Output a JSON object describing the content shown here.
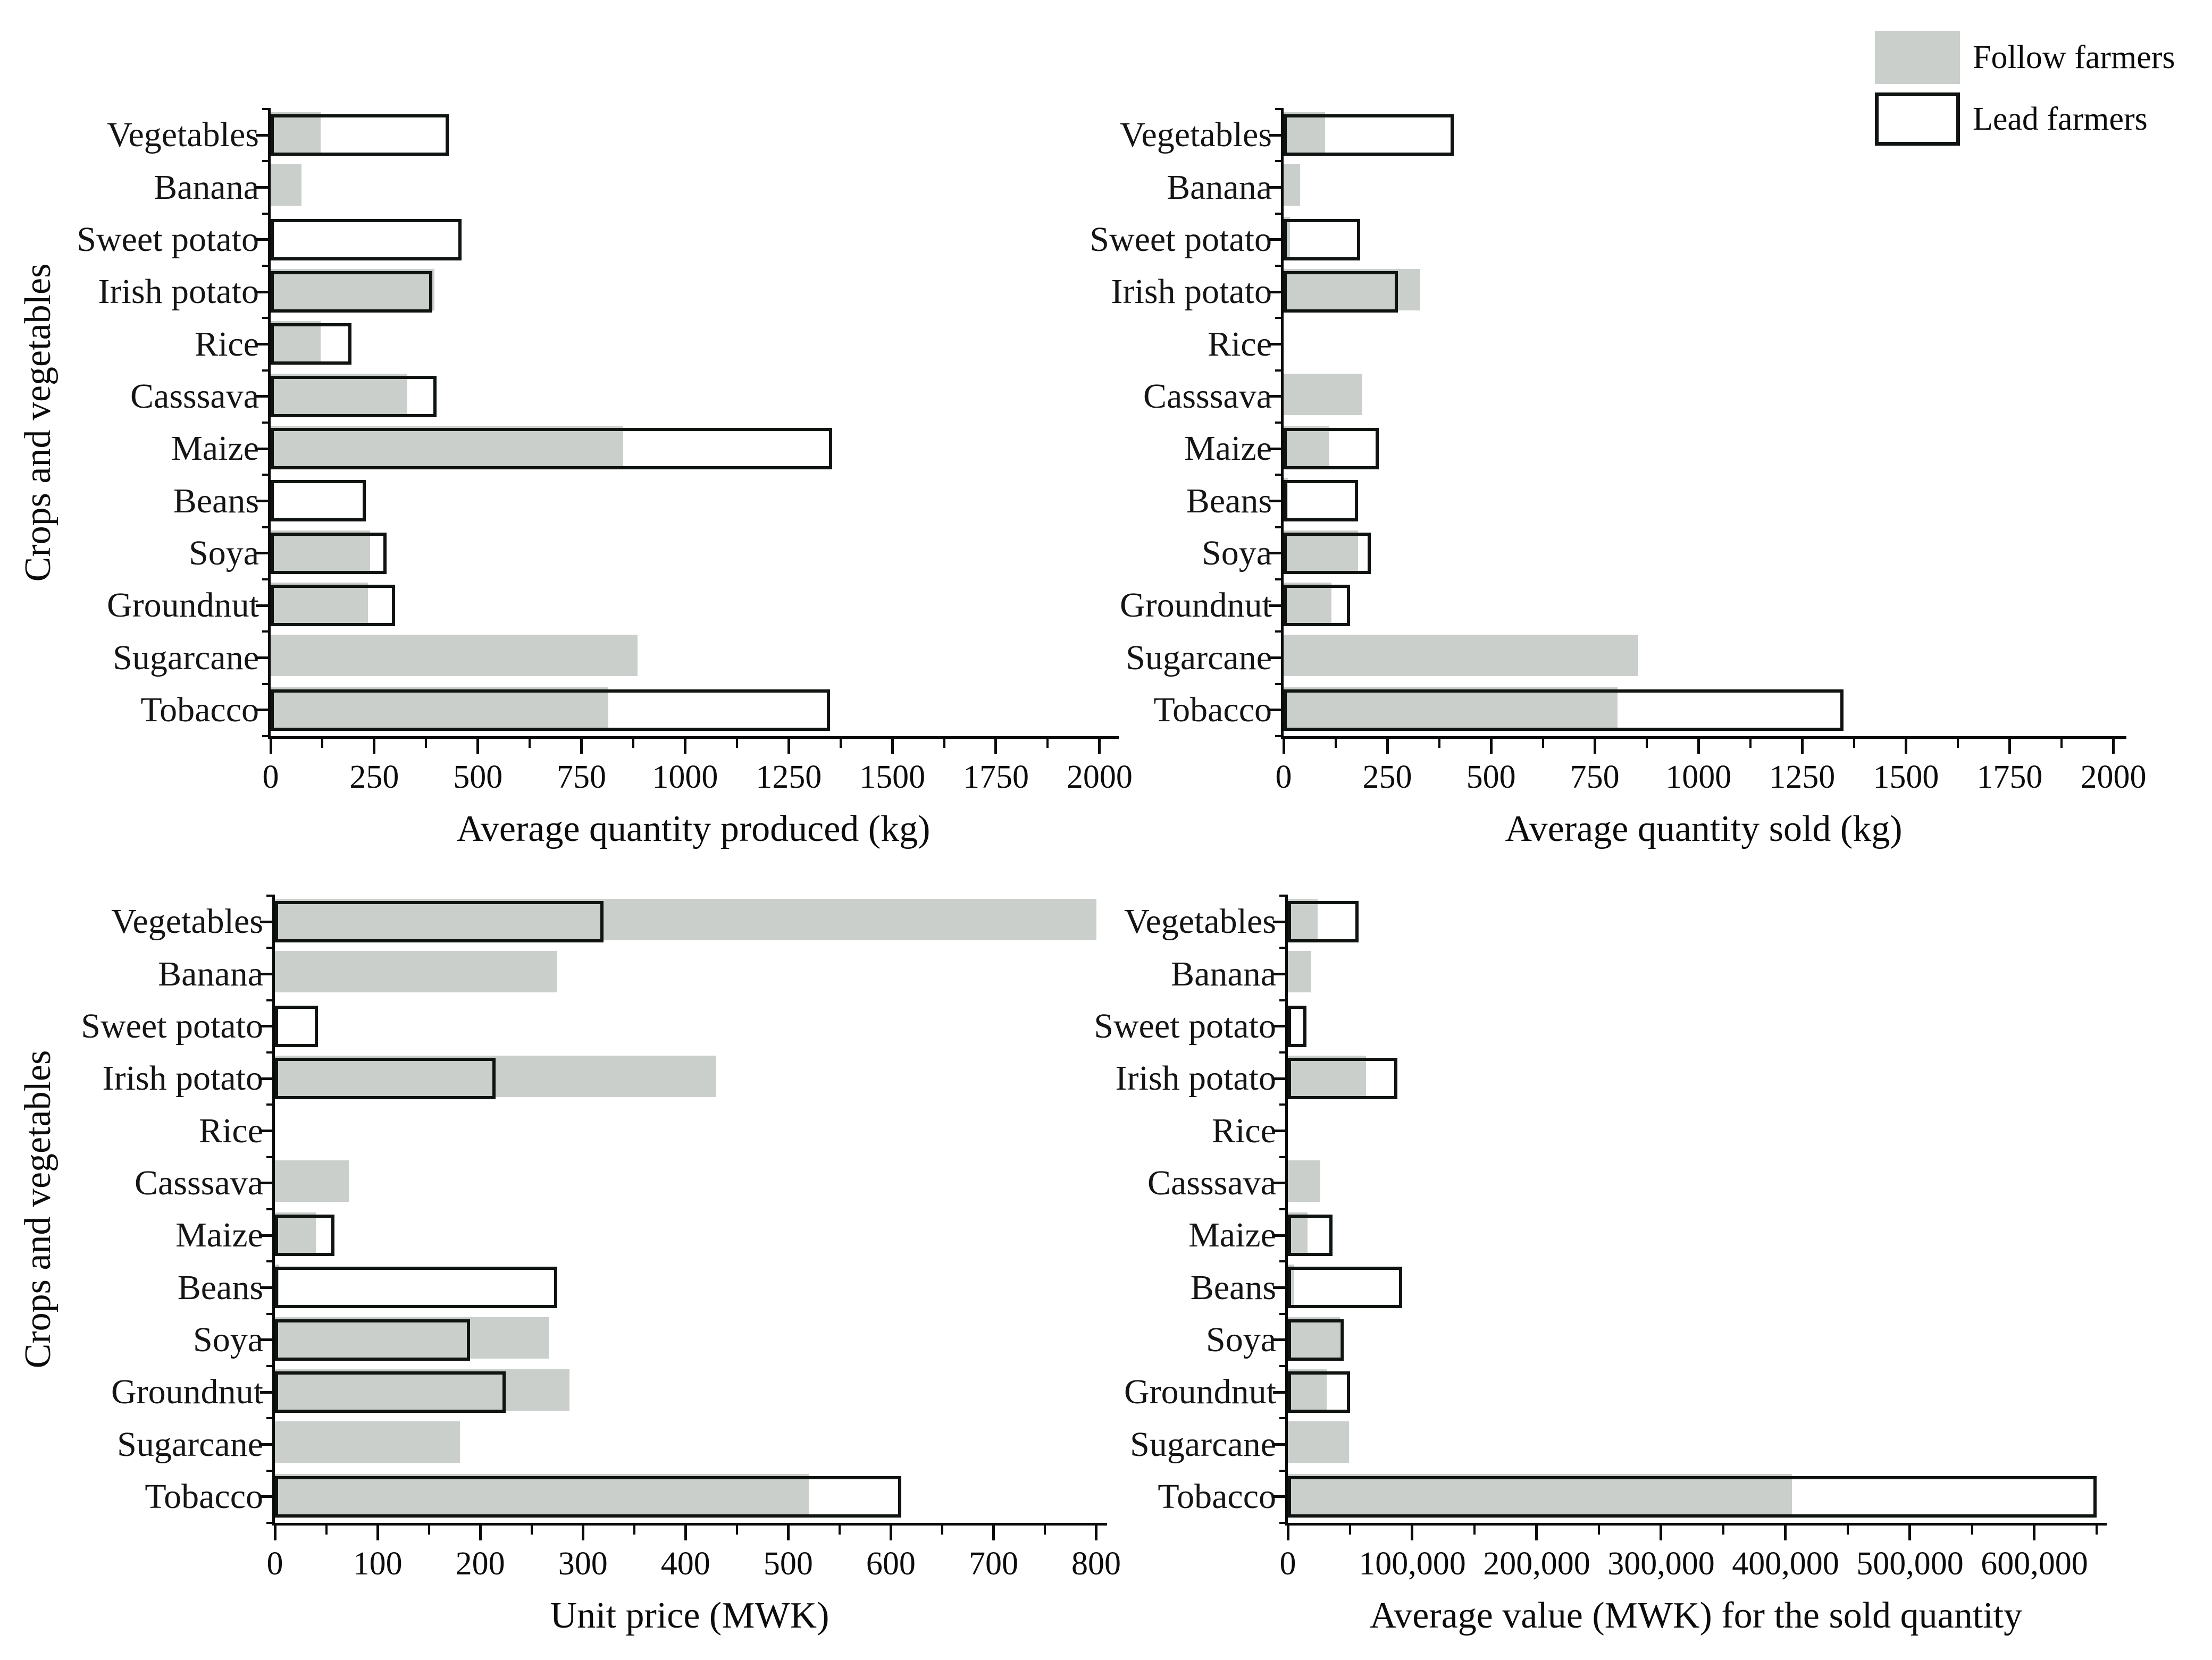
{
  "y_axis_label": "Crops and vegetables",
  "categories": [
    "Vegetables",
    "Banana",
    "Sweet potato",
    "Irish potato",
    "Rice",
    "Casssava",
    "Maize",
    "Beans",
    "Soya",
    "Groundnut",
    "Sugarcane",
    "Tobacco"
  ],
  "colors": {
    "follow_fill": "#cacfcb",
    "lead_fill": "#ffffff",
    "lead_border": "#101410",
    "axis": "#0a0a0a",
    "background": "#ffffff"
  },
  "legend": {
    "items": [
      {
        "label": "Follow farmers",
        "swatch": "follow-filled-gray"
      },
      {
        "label": "Lead farmers",
        "swatch": "lead-white-outline"
      }
    ]
  },
  "chart_data": [
    {
      "type": "bar",
      "id": "produced",
      "orientation": "horizontal",
      "xlabel": "Average quantity produced (kg)",
      "xlim": [
        0,
        2000
      ],
      "xtick_values": [
        0,
        250,
        500,
        750,
        1000,
        1250,
        1500,
        1750,
        2000
      ],
      "xtick_labels": [
        "0",
        "250",
        "500",
        "750",
        "1000",
        "1250",
        "1500",
        "1750",
        "2000"
      ],
      "minor_tick_step": 125,
      "grid": false,
      "categories": [
        "Vegetables",
        "Banana",
        "Sweet potato",
        "Irish potato",
        "Rice",
        "Casssava",
        "Maize",
        "Beans",
        "Soya",
        "Groundnut",
        "Sugarcane",
        "Tobacco"
      ],
      "series": [
        {
          "name": "Follow farmers",
          "values": [
            120,
            75,
            0,
            395,
            120,
            330,
            850,
            0,
            240,
            235,
            885,
            815
          ]
        },
        {
          "name": "Lead farmers",
          "values": [
            430,
            0,
            460,
            390,
            195,
            400,
            1355,
            230,
            280,
            300,
            0,
            1350
          ]
        }
      ]
    },
    {
      "type": "bar",
      "id": "sold",
      "orientation": "horizontal",
      "xlabel": "Average quantity sold (kg)",
      "xlim": [
        0,
        2000
      ],
      "xtick_values": [
        0,
        250,
        500,
        750,
        1000,
        1250,
        1500,
        1750,
        2000
      ],
      "xtick_labels": [
        "0",
        "250",
        "500",
        "750",
        "1000",
        "1250",
        "1500",
        "1750",
        "2000"
      ],
      "minor_tick_step": 125,
      "grid": false,
      "categories": [
        "Vegetables",
        "Banana",
        "Sweet potato",
        "Irish potato",
        "Rice",
        "Casssava",
        "Maize",
        "Beans",
        "Soya",
        "Groundnut",
        "Sugarcane",
        "Tobacco"
      ],
      "series": [
        {
          "name": "Follow farmers",
          "values": [
            100,
            40,
            15,
            330,
            0,
            190,
            110,
            10,
            180,
            115,
            855,
            805
          ]
        },
        {
          "name": "Lead farmers",
          "values": [
            410,
            0,
            185,
            275,
            0,
            0,
            230,
            180,
            210,
            160,
            0,
            1350
          ]
        }
      ]
    },
    {
      "type": "bar",
      "id": "price",
      "orientation": "horizontal",
      "xlabel": "Unit price (MWK)",
      "xlim": [
        0,
        800
      ],
      "xtick_values": [
        0,
        100,
        200,
        300,
        400,
        500,
        600,
        700,
        800
      ],
      "xtick_labels": [
        "0",
        "100",
        "200",
        "300",
        "400",
        "500",
        "600",
        "700",
        "800"
      ],
      "minor_tick_step": 50,
      "grid": false,
      "categories": [
        "Vegetables",
        "Banana",
        "Sweet potato",
        "Irish potato",
        "Rice",
        "Casssava",
        "Maize",
        "Beans",
        "Soya",
        "Groundnut",
        "Sugarcane",
        "Tobacco"
      ],
      "series": [
        {
          "name": "Follow farmers",
          "values": [
            800,
            275,
            0,
            430,
            0,
            72,
            40,
            4,
            267,
            287,
            180,
            520
          ]
        },
        {
          "name": "Lead farmers",
          "values": [
            320,
            0,
            42,
            215,
            0,
            0,
            58,
            275,
            190,
            225,
            0,
            610
          ]
        }
      ]
    },
    {
      "type": "bar",
      "id": "value",
      "orientation": "horizontal",
      "xlabel": "Average value (MWK) for the sold quantity",
      "xlim": [
        0,
        600000
      ],
      "xtick_values": [
        0,
        100000,
        200000,
        300000,
        400000,
        500000,
        600000
      ],
      "xtick_labels": [
        "0",
        "100,000",
        "200,000",
        "300,000",
        "400,000",
        "500,000",
        "600,000"
      ],
      "minor_tick_step": 50000,
      "grid": false,
      "categories": [
        "Vegetables",
        "Banana",
        "Sweet potato",
        "Irish potato",
        "Rice",
        "Casssava",
        "Maize",
        "Beans",
        "Soya",
        "Groundnut",
        "Sugarcane",
        "Tobacco"
      ],
      "series": [
        {
          "name": "Follow farmers",
          "values": [
            24000,
            19000,
            0,
            63000,
            0,
            26000,
            16000,
            5000,
            42000,
            31000,
            49000,
            405000
          ]
        },
        {
          "name": "Lead farmers",
          "values": [
            57000,
            0,
            15000,
            88000,
            0,
            0,
            36000,
            92000,
            45000,
            50000,
            0,
            650000
          ]
        }
      ]
    }
  ]
}
